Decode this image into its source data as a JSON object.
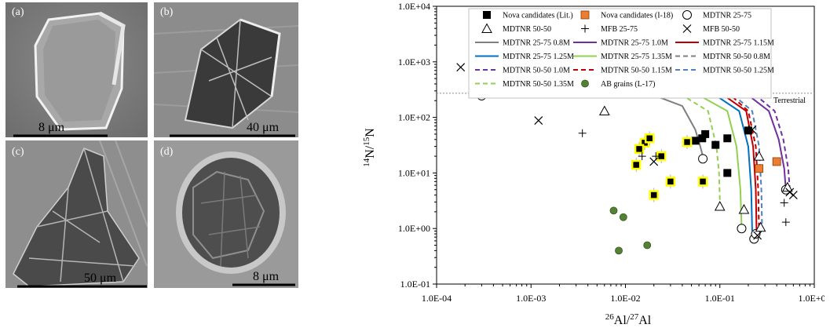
{
  "figure": {
    "panels": [
      {
        "label": "(a)",
        "scale_bar": "8 μm"
      },
      {
        "label": "(b)",
        "scale_bar": "40 μm"
      },
      {
        "label": "(c)",
        "scale_bar": "50 μm"
      },
      {
        "label": "(d)",
        "scale_bar": "8 μm"
      }
    ]
  },
  "chart_data": {
    "type": "scatter",
    "title": "",
    "xlabel_iso": "26",
    "xlabel_el1": "Al/",
    "xlabel_iso2": "27",
    "xlabel_el2": "Al",
    "ylabel_iso": "14",
    "ylabel_el1": "N/",
    "ylabel_iso2": "15",
    "ylabel_el2": "N",
    "x_scale": "log",
    "y_scale": "log",
    "xlim": [
      0.0001,
      1.0
    ],
    "ylim": [
      0.1,
      10000
    ],
    "x_ticks": [
      "1.0E-04",
      "1.0E-03",
      "1.0E-02",
      "1.0E-01",
      "1.0E+00"
    ],
    "y_ticks": [
      "1.0E-01",
      "1.0E+00",
      "1.0E+01",
      "1.0E+02",
      "1.0E+03",
      "1.0E+04"
    ],
    "reference_line": {
      "label": "Terrestrial",
      "y": 272
    },
    "legend": [
      {
        "label": "Nova candidates (Lit.)",
        "kind": "square-black"
      },
      {
        "label": "Nova candidates (I-18)",
        "kind": "square-orange"
      },
      {
        "label": "MDTNR 25-75",
        "kind": "circle"
      },
      {
        "label": "MDTNR 50-50",
        "kind": "triangle"
      },
      {
        "label": "MFB 25-75",
        "kind": "plus"
      },
      {
        "label": "MFB 50-50",
        "kind": "cross"
      },
      {
        "label": "MDTNR 25-75 0.8M",
        "kind": "line",
        "color": "#7f7f7f",
        "dash": false
      },
      {
        "label": "MDTNR 25-75 1.0M",
        "kind": "line",
        "color": "#7030a0",
        "dash": false
      },
      {
        "label": "MDTNR 25-75 1.15M",
        "kind": "line",
        "color": "#c00000",
        "dash": false
      },
      {
        "label": "MDTNR 25-75 1.25M",
        "kind": "line",
        "color": "#0070c0",
        "dash": false
      },
      {
        "label": "MDTNR 25-75 1.35M",
        "kind": "line",
        "color": "#92d050",
        "dash": false
      },
      {
        "label": "MDTNR 50-50 0.8M",
        "kind": "line",
        "color": "#7f7f7f",
        "dash": true
      },
      {
        "label": "MDTNR 50-50 1.0M",
        "kind": "line",
        "color": "#7030a0",
        "dash": true
      },
      {
        "label": "MDTNR 50-50 1.15M",
        "kind": "line",
        "color": "#c00000",
        "dash": true
      },
      {
        "label": "MDTNR 50-50 1.25M",
        "kind": "line",
        "color": "#4f81bd",
        "dash": true
      },
      {
        "label": "MDTNR 50-50 1.35M",
        "kind": "line",
        "color": "#92d050",
        "dash": true
      },
      {
        "label": "AB grains (L-17)",
        "kind": "dot-green"
      }
    ],
    "curves": [
      {
        "name": "MDTNR 25-75 0.8M",
        "color": "#7f7f7f",
        "dash": false,
        "x": [
          0.005,
          0.02,
          0.04,
          0.055,
          0.062,
          0.066
        ],
        "y": [
          265,
          250,
          160,
          60,
          30,
          20
        ]
      },
      {
        "name": "MDTNR 50-50 1.35M",
        "color": "#92d050",
        "dash": true,
        "x": [
          0.012,
          0.04,
          0.075,
          0.092,
          0.098,
          0.1
        ],
        "y": [
          265,
          250,
          130,
          30,
          10,
          3
        ]
      },
      {
        "name": "MDTNR 25-75 1.35M",
        "color": "#92d050",
        "dash": false,
        "x": [
          0.015,
          0.06,
          0.12,
          0.15,
          0.165,
          0.17
        ],
        "y": [
          265,
          250,
          130,
          30,
          5,
          1
        ]
      },
      {
        "name": "MDTNR 25-75 1.25M",
        "color": "#0070c0",
        "dash": false,
        "x": [
          0.02,
          0.09,
          0.16,
          0.2,
          0.215,
          0.22
        ],
        "y": [
          265,
          250,
          130,
          30,
          5,
          0.9
        ]
      },
      {
        "name": "MDTNR 25-75 1.15M",
        "color": "#c00000",
        "dash": false,
        "x": [
          0.025,
          0.11,
          0.19,
          0.225,
          0.24,
          0.245
        ],
        "y": [
          265,
          250,
          130,
          30,
          5,
          0.85
        ]
      },
      {
        "name": "MDTNR 50-50 1.15M",
        "color": "#c00000",
        "dash": true,
        "x": [
          0.03,
          0.13,
          0.2,
          0.24,
          0.255,
          0.26
        ],
        "y": [
          265,
          250,
          130,
          30,
          5,
          0.8
        ]
      },
      {
        "name": "MDTNR 50-50 1.25M",
        "color": "#4f81bd",
        "dash": true,
        "x": [
          0.03,
          0.14,
          0.22,
          0.26,
          0.275,
          0.28
        ],
        "y": [
          265,
          250,
          130,
          30,
          5,
          1
        ]
      },
      {
        "name": "MDTNR 25-75 1.0M",
        "color": "#7030a0",
        "dash": false,
        "x": [
          0.04,
          0.2,
          0.33,
          0.42,
          0.48,
          0.5
        ],
        "y": [
          265,
          250,
          130,
          40,
          12,
          5
        ]
      },
      {
        "name": "MDTNR 50-50 1.0M",
        "color": "#7030a0",
        "dash": true,
        "x": [
          0.05,
          0.24,
          0.38,
          0.47,
          0.53,
          0.55
        ],
        "y": [
          265,
          250,
          130,
          40,
          12,
          5
        ]
      }
    ],
    "series": [
      {
        "name": "Nova candidates (Lit.)",
        "kind": "square-black",
        "points": [
          [
            0.055,
            38
          ],
          [
            0.07,
            50
          ],
          [
            0.065,
            42
          ],
          [
            0.09,
            32
          ],
          [
            0.12,
            42
          ],
          [
            0.2,
            58
          ],
          [
            0.12,
            10
          ]
        ]
      },
      {
        "name": "Nova candidates (I-18)",
        "kind": "square-orange",
        "points": [
          [
            0.26,
            12
          ],
          [
            0.4,
            16
          ]
        ]
      },
      {
        "name": "Nova candidates (highlighted)",
        "kind": "square-yellow",
        "points": [
          [
            0.016,
            35
          ],
          [
            0.018,
            42
          ],
          [
            0.014,
            27
          ],
          [
            0.013,
            14
          ],
          [
            0.024,
            20
          ],
          [
            0.03,
            7
          ],
          [
            0.02,
            4
          ],
          [
            0.045,
            36
          ],
          [
            0.066,
            7
          ]
        ]
      },
      {
        "name": "MDTNR 25-75",
        "kind": "circle",
        "points": [
          [
            0.0003,
            245
          ],
          [
            0.066,
            18
          ],
          [
            0.17,
            1.0
          ],
          [
            0.23,
            0.65
          ],
          [
            0.24,
            0.8
          ],
          [
            0.5,
            5
          ]
        ]
      },
      {
        "name": "MDTNR 50-50",
        "kind": "triangle",
        "points": [
          [
            0.006,
            130
          ],
          [
            0.1,
            2.5
          ],
          [
            0.18,
            2.2
          ],
          [
            0.27,
            1.05
          ],
          [
            0.26,
            20
          ],
          [
            0.52,
            5.5
          ]
        ]
      },
      {
        "name": "MFB 25-75",
        "kind": "plus",
        "points": [
          [
            0.0035,
            52
          ],
          [
            0.015,
            20
          ],
          [
            0.021,
            20
          ],
          [
            0.48,
            2.9
          ],
          [
            0.5,
            1.3
          ]
        ]
      },
      {
        "name": "MFB 50-50",
        "kind": "cross",
        "points": [
          [
            0.00018,
            800
          ],
          [
            0.0012,
            88
          ],
          [
            0.02,
            16
          ],
          [
            0.22,
            60
          ],
          [
            0.25,
            0.75
          ],
          [
            0.55,
            4.5
          ],
          [
            0.6,
            4
          ]
        ]
      },
      {
        "name": "AB grains (L-17)",
        "kind": "dot-green",
        "points": [
          [
            0.0075,
            2.1
          ],
          [
            0.0095,
            1.6
          ],
          [
            0.0085,
            0.4
          ],
          [
            0.017,
            0.5
          ]
        ]
      }
    ]
  }
}
